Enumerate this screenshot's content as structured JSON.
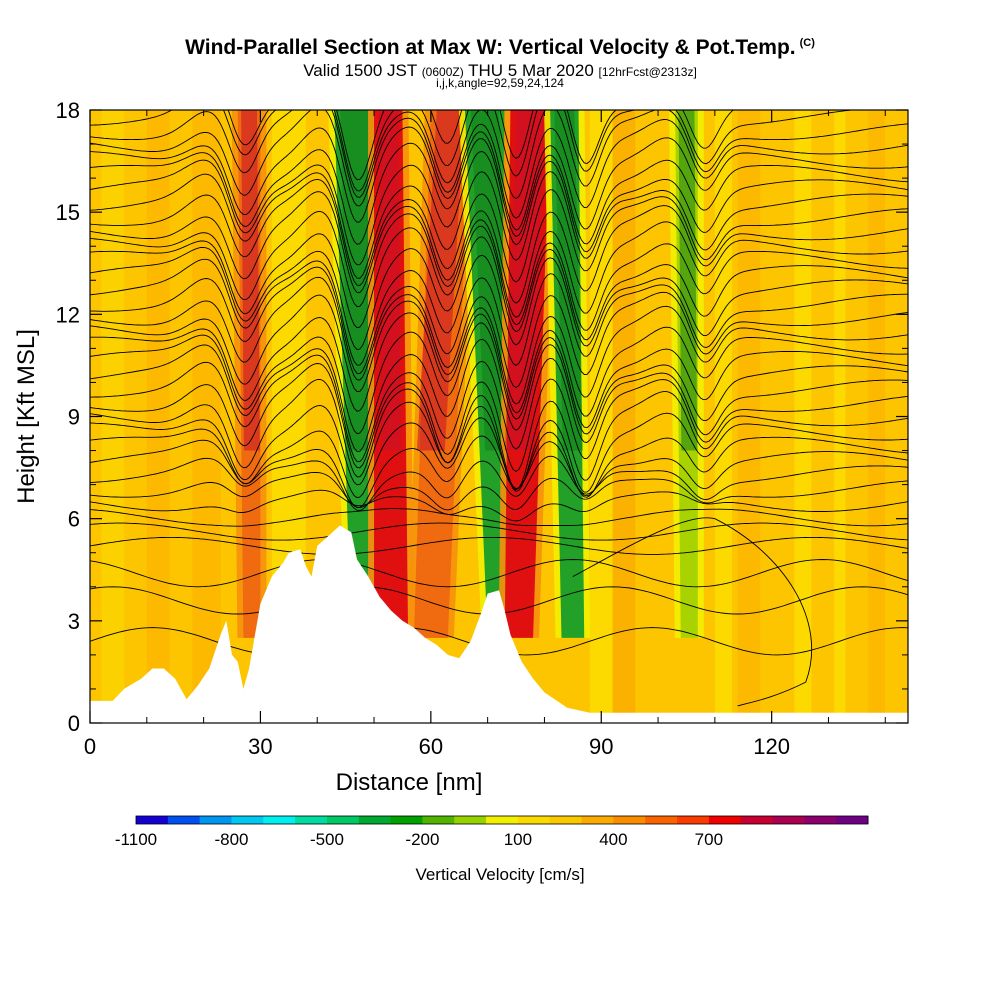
{
  "header": {
    "title": "Wind-Parallel Section at Max W: Vertical Velocity & Pot.Temp.",
    "copyright": "(C)",
    "valid_main": "Valid 1500 JST",
    "valid_utc": "(0600Z)",
    "valid_date": "THU 5 Mar 2020",
    "forecast": "[12hrFcst@2313z]",
    "indices": "i,j,k,angle=92,59,24,124"
  },
  "colors": {
    "background_fill": "#fdc500",
    "updraft_strong": "#e8141c",
    "updraft": "#f77b0d",
    "downdraft": "#1ea01e",
    "downdraft_weak": "#f2f200",
    "terrain": "#ffffff",
    "contour": "#000000"
  },
  "chart_data": {
    "type": "heatmap",
    "xlabel": "Distance [nm]",
    "ylabel": "Height [Kft MSL]",
    "xlim": [
      0,
      144
    ],
    "ylim": [
      0,
      18
    ],
    "x_ticks": [
      0,
      30,
      60,
      90,
      120
    ],
    "y_ticks": [
      0,
      3,
      6,
      9,
      12,
      15,
      18
    ],
    "terrain_profile": [
      [
        0,
        0.65
      ],
      [
        4,
        0.65
      ],
      [
        6,
        1.0
      ],
      [
        9,
        1.3
      ],
      [
        11,
        1.6
      ],
      [
        13,
        1.6
      ],
      [
        15,
        1.3
      ],
      [
        17,
        0.7
      ],
      [
        19,
        1.1
      ],
      [
        21,
        1.6
      ],
      [
        23,
        2.6
      ],
      [
        24,
        3.0
      ],
      [
        25,
        2.0
      ],
      [
        26,
        1.8
      ],
      [
        27,
        1.0
      ],
      [
        28,
        1.6
      ],
      [
        30,
        3.5
      ],
      [
        32,
        4.3
      ],
      [
        34,
        4.7
      ],
      [
        35,
        5.0
      ],
      [
        37,
        5.1
      ],
      [
        38,
        4.6
      ],
      [
        39,
        4.3
      ],
      [
        40,
        5.2
      ],
      [
        42,
        5.5
      ],
      [
        44,
        5.8
      ],
      [
        46,
        5.6
      ],
      [
        47,
        4.8
      ],
      [
        49,
        4.3
      ],
      [
        51,
        3.7
      ],
      [
        53,
        3.3
      ],
      [
        55,
        3.0
      ],
      [
        57,
        2.8
      ],
      [
        59,
        2.5
      ],
      [
        61,
        2.3
      ],
      [
        63,
        2.0
      ],
      [
        65,
        1.9
      ],
      [
        67,
        2.4
      ],
      [
        69,
        3.3
      ],
      [
        70,
        3.8
      ],
      [
        72,
        3.9
      ],
      [
        73,
        3.3
      ],
      [
        74,
        2.6
      ],
      [
        76,
        1.8
      ],
      [
        78,
        1.3
      ],
      [
        80,
        0.9
      ],
      [
        84,
        0.45
      ],
      [
        88,
        0.3
      ],
      [
        144,
        0.3
      ]
    ],
    "velocity_bands": [
      {
        "label": "downdraft",
        "value_cm_s": -500,
        "x_top": [
          43,
          50
        ],
        "x_bottom": [
          46,
          50
        ]
      },
      {
        "label": "updraft",
        "value_cm_s": 500,
        "x_top": [
          50,
          55
        ],
        "x_bottom": [
          50,
          56
        ]
      },
      {
        "label": "updraft",
        "value_cm_s": 400,
        "x_top": [
          60,
          67
        ],
        "x_bottom": [
          57,
          63
        ]
      },
      {
        "label": "downdraft",
        "value_cm_s": -500,
        "x_top": [
          66,
          73
        ],
        "x_bottom": [
          70,
          74
        ]
      },
      {
        "label": "updraft",
        "value_cm_s": 500,
        "x_top": [
          74,
          81
        ],
        "x_bottom": [
          73,
          78
        ]
      },
      {
        "label": "downdraft",
        "value_cm_s": -400,
        "x_top": [
          81,
          86
        ],
        "x_bottom": [
          83,
          87
        ]
      },
      {
        "label": "updraft",
        "value_cm_s": 400,
        "x_top": [
          26,
          30
        ],
        "x_bottom": [
          27,
          30
        ]
      },
      {
        "label": "downdraft",
        "value_cm_s": -200,
        "x_top": [
          103,
          107
        ],
        "x_bottom": [
          104,
          107
        ]
      }
    ],
    "colorbar": {
      "label": "Vertical Velocity [cm/s]",
      "tick_labels": [
        "-1100",
        "-800",
        "-500",
        "-200",
        "100",
        "400",
        "700"
      ],
      "colors": [
        "#1400d2",
        "#0050f0",
        "#0096f0",
        "#00c8f0",
        "#00f0f0",
        "#00dca0",
        "#00c864",
        "#00aa32",
        "#00a000",
        "#50b400",
        "#96d200",
        "#f0f000",
        "#fada00",
        "#fac800",
        "#faaa00",
        "#fa8c00",
        "#fa6400",
        "#fa3c00",
        "#f00000",
        "#c80032",
        "#aa0050",
        "#8c006e",
        "#6e0082"
      ]
    }
  }
}
